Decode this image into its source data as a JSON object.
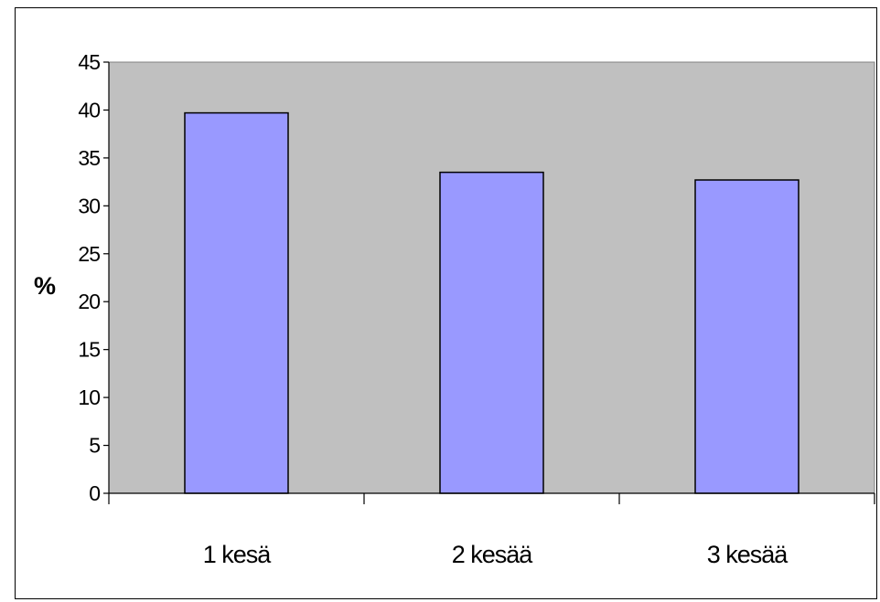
{
  "chart_data": {
    "type": "bar",
    "categories": [
      "1 kesä",
      "2 kesää",
      "3 kesää"
    ],
    "values": [
      39.7,
      33.5,
      32.7
    ],
    "ylabel": "%",
    "xlabel": "",
    "ylim": [
      0,
      45
    ],
    "yticks": [
      "0",
      "5",
      "10",
      "15",
      "20",
      "25",
      "30",
      "35",
      "40",
      "45"
    ],
    "grid": false,
    "legend": "none",
    "colors": {
      "bar_fill": "#9999ff",
      "bar_stroke": "#000000",
      "plot_background": "#c0c0c0",
      "page_background": "#ffffff"
    }
  }
}
